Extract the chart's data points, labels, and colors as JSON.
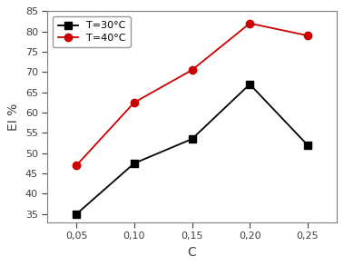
{
  "x": [
    0.05,
    0.1,
    0.15,
    0.2,
    0.25
  ],
  "y_30": [
    35,
    47.5,
    53.5,
    67,
    52
  ],
  "y_40": [
    47,
    62.5,
    70.5,
    82,
    79
  ],
  "color_30": "#000000",
  "color_40": "#cc0000",
  "marker_30": "s",
  "marker_40": "o",
  "label_30": "T=30°C",
  "label_40": "T=40°C",
  "xlabel": "C",
  "ylabel": "EI %",
  "xlim": [
    0.025,
    0.275
  ],
  "ylim": [
    33,
    85
  ],
  "yticks": [
    35,
    40,
    45,
    50,
    55,
    60,
    65,
    70,
    75,
    80,
    85
  ],
  "xtick_labels": [
    "0,05",
    "0,10",
    "0,15",
    "0,20",
    "0,25"
  ],
  "xtick_positions": [
    0.05,
    0.1,
    0.15,
    0.2,
    0.25
  ],
  "linewidth": 1.3,
  "markersize": 6,
  "legend_loc": "upper left",
  "legend_fontsize": 8,
  "axis_label_fontsize": 10,
  "tick_fontsize": 8
}
